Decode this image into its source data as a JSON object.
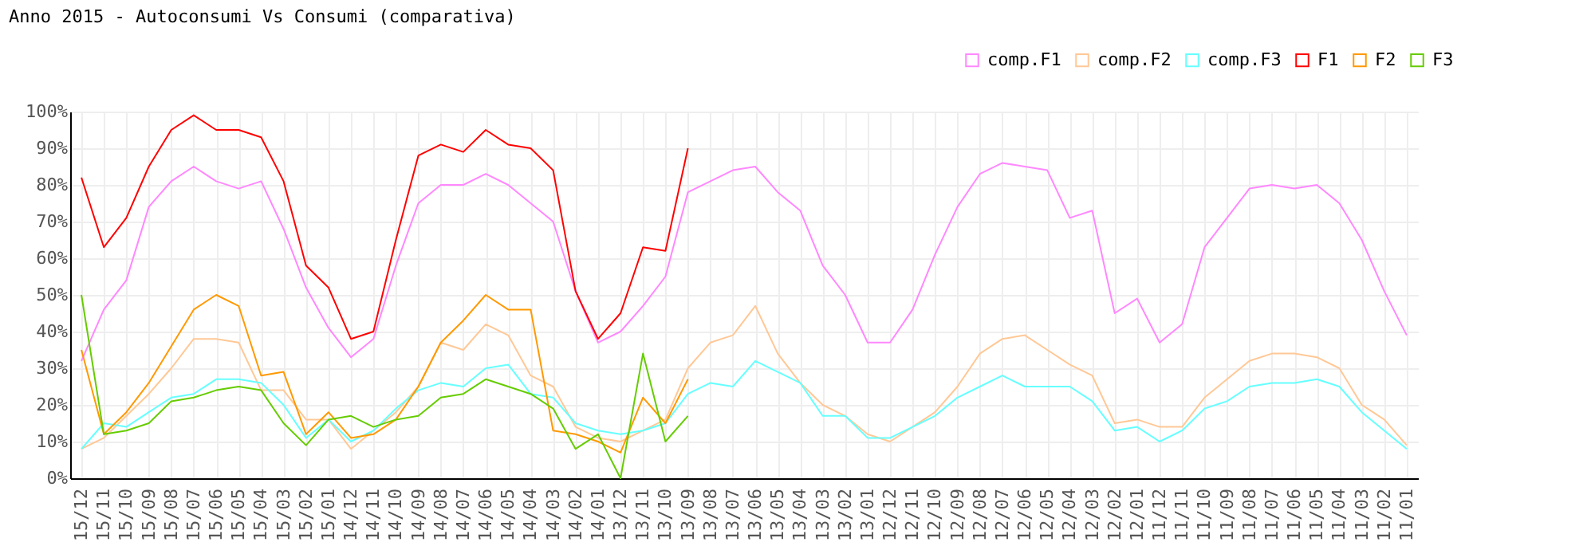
{
  "chart_data": {
    "type": "line",
    "title": "Anno 2015 - Autoconsumi Vs Consumi (comparativa)",
    "categories": [
      "15/12",
      "15/11",
      "15/10",
      "15/09",
      "15/08",
      "15/07",
      "15/06",
      "15/05",
      "15/04",
      "15/03",
      "15/02",
      "15/01",
      "14/12",
      "14/11",
      "14/10",
      "14/09",
      "14/08",
      "14/07",
      "14/06",
      "14/05",
      "14/04",
      "14/03",
      "14/02",
      "14/01",
      "13/12",
      "13/11",
      "13/10",
      "13/09",
      "13/08",
      "13/07",
      "13/06",
      "13/05",
      "13/04",
      "13/03",
      "13/02",
      "13/01",
      "12/12",
      "12/11",
      "12/10",
      "12/09",
      "12/08",
      "12/07",
      "12/06",
      "12/05",
      "12/04",
      "12/03",
      "12/02",
      "12/01",
      "11/12",
      "11/11",
      "11/10",
      "11/09",
      "11/08",
      "11/07",
      "11/06",
      "11/05",
      "11/04",
      "11/03",
      "11/02",
      "11/01"
    ],
    "series": [
      {
        "name": "comp.F1",
        "color": "#ff88ff",
        "values": [
          32,
          46,
          54,
          74,
          81,
          85,
          81,
          79,
          81,
          68,
          52,
          41,
          33,
          38,
          58,
          75,
          80,
          80,
          83,
          80,
          75,
          70,
          51,
          37,
          40,
          47,
          55,
          78,
          81,
          84,
          85,
          78,
          73,
          58,
          50,
          37,
          37,
          46,
          61,
          74,
          83,
          86,
          85,
          84,
          71,
          73,
          45,
          49,
          37,
          42,
          63,
          71,
          79,
          80,
          79,
          80,
          75,
          65,
          51,
          39
        ]
      },
      {
        "name": "comp.F2",
        "color": "#ffc896",
        "values": [
          8,
          11,
          17,
          23,
          30,
          38,
          38,
          37,
          24,
          24,
          16,
          16,
          8,
          13,
          18,
          25,
          37,
          35,
          42,
          39,
          28,
          25,
          14,
          11,
          10,
          13,
          16,
          30,
          37,
          39,
          47,
          34,
          26,
          20,
          17,
          12,
          10,
          14,
          18,
          25,
          34,
          38,
          39,
          35,
          31,
          28,
          15,
          16,
          14,
          14,
          22,
          27,
          32,
          34,
          34,
          33,
          30,
          20,
          16,
          9
        ]
      },
      {
        "name": "comp.F3",
        "color": "#66ffff",
        "values": [
          8,
          15,
          14,
          18,
          22,
          23,
          27,
          27,
          26,
          20,
          11,
          16,
          10,
          13,
          19,
          24,
          26,
          25,
          30,
          31,
          23,
          22,
          15,
          13,
          12,
          13,
          15,
          23,
          26,
          25,
          32,
          29,
          26,
          17,
          17,
          11,
          11,
          14,
          17,
          22,
          25,
          28,
          25,
          25,
          25,
          21,
          13,
          14,
          10,
          13,
          19,
          21,
          25,
          26,
          26,
          27,
          25,
          18,
          13,
          8
        ]
      },
      {
        "name": "F1",
        "color": "#ff0000",
        "values": [
          82,
          63,
          71,
          85,
          95,
          99,
          95,
          95,
          93,
          81,
          58,
          52,
          38,
          40,
          65,
          88,
          91,
          89,
          95,
          91,
          90,
          84,
          51,
          38,
          45,
          63,
          62,
          90,
          null,
          null,
          null,
          null,
          null,
          null,
          null,
          null,
          null,
          null,
          null,
          null,
          null,
          null,
          null,
          null,
          null,
          null,
          null,
          null,
          null,
          null,
          null,
          null,
          null,
          null,
          null,
          null,
          null,
          null,
          null,
          null
        ]
      },
      {
        "name": "F2",
        "color": "#ff9900",
        "values": [
          35,
          12,
          18,
          26,
          36,
          46,
          50,
          47,
          28,
          29,
          12,
          18,
          11,
          12,
          16,
          25,
          37,
          43,
          50,
          46,
          46,
          13,
          12,
          10,
          7,
          22,
          15,
          27,
          null,
          null,
          null,
          null,
          null,
          null,
          null,
          null,
          null,
          null,
          null,
          null,
          null,
          null,
          null,
          null,
          null,
          null,
          null,
          null,
          null,
          null,
          null,
          null,
          null,
          null,
          null,
          null,
          null,
          null,
          null,
          null
        ]
      },
      {
        "name": "F3",
        "color": "#66cc00",
        "values": [
          50,
          12,
          13,
          15,
          21,
          22,
          24,
          25,
          24,
          15,
          9,
          16,
          17,
          14,
          16,
          17,
          22,
          23,
          27,
          25,
          23,
          19,
          8,
          12,
          0,
          34,
          10,
          17,
          null,
          null,
          null,
          null,
          null,
          null,
          null,
          null,
          null,
          null,
          null,
          null,
          null,
          null,
          null,
          null,
          null,
          null,
          null,
          null,
          null,
          null,
          null,
          null,
          null,
          null,
          null,
          null,
          null,
          null,
          null,
          null
        ]
      }
    ],
    "ylim": [
      0,
      100
    ],
    "yticks": [
      {
        "value": 0,
        "label": "0%"
      },
      {
        "value": 10,
        "label": "10%"
      },
      {
        "value": 20,
        "label": "20%"
      },
      {
        "value": 30,
        "label": "30%"
      },
      {
        "value": 40,
        "label": "40%"
      },
      {
        "value": 50,
        "label": "50%"
      },
      {
        "value": 60,
        "label": "60%"
      },
      {
        "value": 70,
        "label": "70%"
      },
      {
        "value": 80,
        "label": "80%"
      },
      {
        "value": 90,
        "label": "90%"
      },
      {
        "value": 100,
        "label": "100%"
      }
    ],
    "grid": true,
    "legend": "top right",
    "marker": "none",
    "line_style": "solid"
  }
}
